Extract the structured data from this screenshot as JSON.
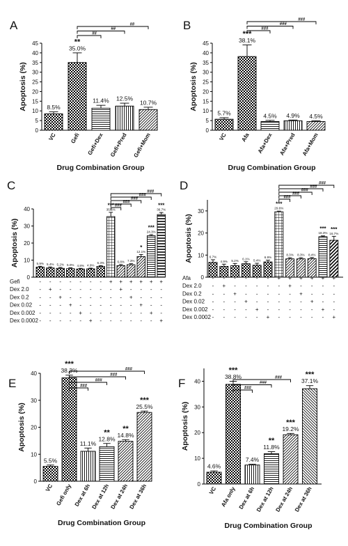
{
  "chart_data": [
    {
      "type": "bar",
      "panel": "A",
      "ylabel": "Apoptosis (%)",
      "xlabel": "Drug Combination Group",
      "ylim": [
        0,
        45
      ],
      "yticks": [
        0,
        5,
        10,
        15,
        20,
        25,
        30,
        35,
        40,
        45
      ],
      "categories": [
        "VC",
        "Gefi",
        "Gefi+Dex",
        "Gefi+Pred",
        "Gefi+Mom"
      ],
      "values": [
        8.5,
        35.0,
        11.4,
        12.5,
        10.7
      ],
      "errors": [
        1.0,
        5.0,
        1.5,
        1.5,
        1.2
      ],
      "labels": [
        "8.5%",
        "35.0%",
        "11.4%",
        "12.5%",
        "10.7%"
      ],
      "significance": [
        "",
        "**",
        "",
        "",
        ""
      ],
      "comparisons": [
        {
          "from": 1,
          "to": 2,
          "label": "##"
        },
        {
          "from": 1,
          "to": 3,
          "label": "##"
        },
        {
          "from": 1,
          "to": 4,
          "label": "##"
        }
      ]
    },
    {
      "type": "bar",
      "panel": "B",
      "ylabel": "Apoptosis (%)",
      "xlabel": "Drug Combination Group",
      "ylim": [
        0,
        45
      ],
      "yticks": [
        0,
        5,
        10,
        15,
        20,
        25,
        30,
        35,
        40,
        45
      ],
      "categories": [
        "VC",
        "Afa",
        "Afa+Dex",
        "Afa+Pred",
        "Afa+Mom"
      ],
      "values": [
        5.7,
        38.1,
        4.5,
        4.9,
        4.5
      ],
      "errors": [
        0.8,
        6.0,
        0.6,
        0.4,
        0.4
      ],
      "labels": [
        "5.7%",
        "38.1%",
        "4.5%",
        "4.9%",
        "4.5%"
      ],
      "significance": [
        "",
        "***",
        "",
        "",
        ""
      ],
      "comparisons": [
        {
          "from": 1,
          "to": 2,
          "label": "###"
        },
        {
          "from": 1,
          "to": 3,
          "label": "###"
        },
        {
          "from": 1,
          "to": 4,
          "label": "###"
        }
      ]
    },
    {
      "type": "bar",
      "panel": "C",
      "ylabel": "Apoptosis (%)",
      "ylim": [
        0,
        40
      ],
      "yticks": [
        0,
        10,
        20,
        30,
        40
      ],
      "values": [
        5.9,
        5.4,
        5.2,
        5.0,
        4.8,
        4.9,
        6.3,
        35.5,
        6.8,
        7.3,
        12.1,
        24.3,
        36.7
      ],
      "errors": [
        0.5,
        0.6,
        0.5,
        0.5,
        0.4,
        0.4,
        0.5,
        2.5,
        0.6,
        0.6,
        1.2,
        0.6,
        1.2
      ],
      "labels": [
        "5.9%",
        "5.4%",
        "5.2%",
        "5.0%",
        "4.8%",
        "4.9%",
        "6.3%",
        "35.5%",
        "6.8%",
        "7.3%",
        "12.1%",
        "24.3%",
        "36.7%"
      ],
      "significance": [
        "",
        "",
        "",
        "",
        "",
        "",
        "",
        "***",
        "",
        "",
        "*",
        "***",
        "***"
      ],
      "comparison_from": 7,
      "comparisons_to": [
        8,
        9,
        10,
        11,
        12
      ],
      "comparison_label": "###",
      "table_rows": [
        {
          "label": "Gefi",
          "marks": [
            "-",
            "-",
            "-",
            "-",
            "-",
            "-",
            "-",
            "+",
            "+",
            "+",
            "+",
            "+",
            "+"
          ]
        },
        {
          "label": "Dex 2.0",
          "marks": [
            "-",
            "+",
            "-",
            "-",
            "-",
            "-",
            "-",
            "-",
            "+",
            "-",
            "-",
            "-",
            "-"
          ]
        },
        {
          "label": "Dex 0.2",
          "marks": [
            "-",
            "-",
            "+",
            "-",
            "-",
            "-",
            "-",
            "-",
            "-",
            "+",
            "-",
            "-",
            "-"
          ]
        },
        {
          "label": "Dex 0.02",
          "marks": [
            "-",
            "-",
            "-",
            "+",
            "-",
            "-",
            "-",
            "-",
            "-",
            "-",
            "+",
            "-",
            "-"
          ]
        },
        {
          "label": "Dex 0.002",
          "marks": [
            "-",
            "-",
            "-",
            "-",
            "+",
            "-",
            "-",
            "-",
            "-",
            "-",
            "-",
            "+",
            "-"
          ]
        },
        {
          "label": "Dex 0.0002",
          "marks": [
            "-",
            "-",
            "-",
            "-",
            "-",
            "+",
            "-",
            "-",
            "-",
            "-",
            "-",
            "-",
            "+"
          ]
        }
      ]
    },
    {
      "type": "bar",
      "panel": "D",
      "ylabel": "Apoptosis (%)",
      "ylim": [
        0,
        35
      ],
      "yticks": [
        0,
        10,
        20,
        30
      ],
      "values": [
        6.7,
        4.9,
        5.2,
        6.1,
        5.4,
        6.9,
        29.6,
        8.3,
        8.3,
        8.4,
        18.3,
        16.7
      ],
      "errors": [
        1.2,
        1.0,
        1.0,
        0.9,
        0.9,
        0.8,
        0.3,
        0.5,
        0.5,
        0.5,
        0.4,
        1.8
      ],
      "labels": [
        "6.7%",
        "4.9%",
        "5.2%",
        "6.1%",
        "5.4%",
        "6.9%",
        "29.6%",
        "8.3%",
        "8.3%",
        "8.4%",
        "18.3%",
        "16.7%"
      ],
      "significance": [
        "",
        "",
        "",
        "",
        "",
        "",
        "***",
        "",
        "",
        "",
        "***",
        "***"
      ],
      "comparison_from": 6,
      "comparisons_to": [
        7,
        8,
        9,
        10,
        11
      ],
      "comparison_label": "###",
      "table_rows": [
        {
          "label": "Afa",
          "marks": [
            "-",
            "-",
            "-",
            "-",
            "-",
            "-",
            "+",
            "+",
            "+",
            "+",
            "+",
            "+"
          ]
        },
        {
          "label": "Dex 2.0",
          "marks": [
            "-",
            "+",
            "-",
            "-",
            "-",
            "-",
            "-",
            "+",
            "-",
            "-",
            "-",
            "-"
          ]
        },
        {
          "label": "Dex 0.2",
          "marks": [
            "-",
            "-",
            "+",
            "-",
            "-",
            "-",
            "-",
            "-",
            "+",
            "-",
            "-",
            "-"
          ]
        },
        {
          "label": "Dex 0.02",
          "marks": [
            "-",
            "-",
            "-",
            "+",
            "-",
            "-",
            "-",
            "-",
            "-",
            "+",
            "-",
            "-"
          ]
        },
        {
          "label": "Dex 0.002",
          "marks": [
            "-",
            "-",
            "-",
            "-",
            "+",
            "-",
            "-",
            "-",
            "-",
            "-",
            "+",
            "-"
          ]
        },
        {
          "label": "Dex 0.0002",
          "marks": [
            "-",
            "-",
            "-",
            "-",
            "-",
            "+",
            "-",
            "-",
            "-",
            "-",
            "-",
            "+"
          ]
        }
      ]
    },
    {
      "type": "bar",
      "panel": "E",
      "ylabel": "Apoptosis (%)",
      "xlabel": "Drug Combination Group",
      "ylim": [
        0,
        40
      ],
      "yticks": [
        0,
        10,
        20,
        30,
        40
      ],
      "categories": [
        "VC",
        "Gefi only",
        "Dex at 6h",
        "Dex at 12h",
        "Dex at 24h",
        "Dex at 36h"
      ],
      "values": [
        5.5,
        38.3,
        11.1,
        12.8,
        14.8,
        25.5
      ],
      "errors": [
        0.5,
        1.0,
        1.2,
        1.2,
        0.6,
        0.5
      ],
      "labels": [
        "5.5%",
        "38.3%",
        "11.1%",
        "12.8%",
        "14.8%",
        "25.5%"
      ],
      "significance": [
        "",
        "***",
        "",
        "**",
        "**",
        "***"
      ],
      "comparisons": [
        {
          "from": 1,
          "to": 2,
          "label": "###"
        },
        {
          "from": 1,
          "to": 3,
          "label": "###"
        },
        {
          "from": 1,
          "to": 4,
          "label": "###"
        },
        {
          "from": 1,
          "to": 5,
          "label": "###"
        }
      ]
    },
    {
      "type": "bar",
      "panel": "F",
      "ylabel": "Apoptosis (%)",
      "xlabel": "Drug Combination Group",
      "ylim": [
        0,
        45
      ],
      "yticks": [
        0,
        10,
        20,
        30,
        40
      ],
      "categories": [
        "VC",
        "Afa only",
        "Dex at 6h",
        "Dex at 12h",
        "Dex at 24h",
        "Dex at 36h"
      ],
      "values": [
        4.6,
        38.8,
        7.4,
        11.8,
        19.2,
        37.1
      ],
      "errors": [
        0.5,
        1.2,
        0.3,
        0.8,
        0.5,
        1.2
      ],
      "labels": [
        "4.6%",
        "38.8%",
        "7.4%",
        "11.8%",
        "19.2%",
        "37.1%"
      ],
      "significance": [
        "",
        "***",
        "",
        "**",
        "***",
        "***"
      ],
      "comparisons": [
        {
          "from": 1,
          "to": 2,
          "label": "###"
        },
        {
          "from": 1,
          "to": 3,
          "label": "###"
        },
        {
          "from": 1,
          "to": 4,
          "label": "###"
        }
      ]
    }
  ]
}
